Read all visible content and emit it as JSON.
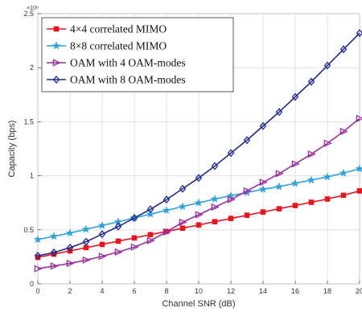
{
  "chart_data": {
    "type": "line",
    "xlabel": "Channel SNR (dB)",
    "ylabel": "Capacity (bps)",
    "y_multiplier_label": "×10⁸",
    "y_multiplier": 100000000,
    "xlim": [
      0,
      20
    ],
    "ylim": [
      0,
      250000000
    ],
    "xticks": [
      0,
      2,
      4,
      6,
      8,
      10,
      12,
      14,
      16,
      18,
      20
    ],
    "yticks": [
      0,
      50000000,
      100000000,
      150000000,
      200000000,
      250000000
    ],
    "xtick_labels": [
      "0",
      "2",
      "4",
      "6",
      "8",
      "10",
      "12",
      "14",
      "16",
      "18",
      "20"
    ],
    "ytick_labels": [
      "0",
      "0.5",
      "1",
      "1.5",
      "2",
      "2.5"
    ],
    "grid": true,
    "legend_position": "top-left",
    "x": [
      0,
      1,
      2,
      3,
      4,
      5,
      6,
      7,
      8,
      9,
      10,
      11,
      12,
      13,
      14,
      15,
      16,
      17,
      18,
      19,
      20
    ],
    "series": [
      {
        "name": "4×4 correlated MIMO",
        "color": "#e8141e",
        "marker": "square",
        "values": [
          24500000,
          27500000,
          30500000,
          33500000,
          36500000,
          39500000,
          42500000,
          45500000,
          48500000,
          51500000,
          54500000,
          57500000,
          60500000,
          63500000,
          66500000,
          69500000,
          72500000,
          75500000,
          78500000,
          82000000,
          86000000
        ]
      },
      {
        "name": "8×8 correlated MIMO",
        "color": "#2ea3d8",
        "marker": "star",
        "values": [
          41000000,
          44000000,
          47000000,
          50500000,
          54000000,
          57500000,
          61000000,
          64500000,
          68000000,
          71500000,
          75000000,
          78500000,
          81500000,
          84500000,
          87500000,
          90000000,
          93000000,
          96000000,
          99000000,
          102500000,
          106500000
        ]
      },
      {
        "name": "OAM with 4 OAM-modes",
        "color": "#9b2f9e",
        "marker": "triangle-right",
        "values": [
          14000000,
          16500000,
          19000000,
          22000000,
          25500000,
          29500000,
          34000000,
          40000000,
          48000000,
          57000000,
          64000000,
          71000000,
          78000000,
          86000000,
          94000000,
          102000000,
          111000000,
          120000000,
          130000000,
          141000000,
          153000000
        ]
      },
      {
        "name": "OAM with 8 OAM-modes",
        "color": "#1f2a8c",
        "marker": "diamond",
        "values": [
          26000000,
          29000000,
          33500000,
          39000000,
          46000000,
          53000000,
          61000000,
          69000000,
          78000000,
          88000000,
          98000000,
          109000000,
          121000000,
          133000000,
          146000000,
          159000000,
          173000000,
          187000000,
          202000000,
          217000000,
          232000000
        ]
      }
    ]
  }
}
